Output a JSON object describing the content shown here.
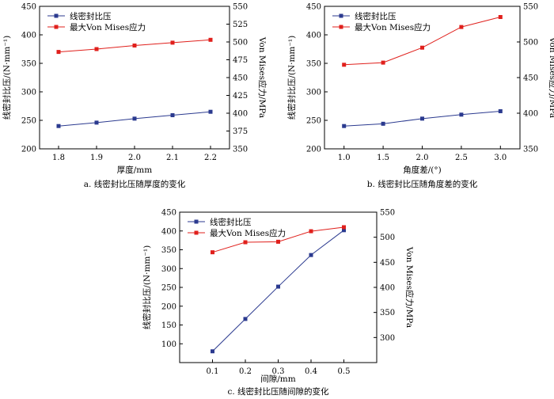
{
  "colors": {
    "blue": "#2b3a8f",
    "red": "#e0201c"
  },
  "chart_data": [
    {
      "type": "line",
      "caption": "a. 线密封比压随厚度的变化",
      "xlabel": "厚度/mm",
      "ylabel_left": "线密封比压/(N·mm⁻¹)",
      "ylabel_right": "Von Mises应力/MPa",
      "x": [
        1.8,
        1.9,
        2.0,
        2.1,
        2.2
      ],
      "x_ticks": [
        "1.8",
        "1.9",
        "2.0",
        "2.1",
        "2.2"
      ],
      "xlim": [
        1.75,
        2.25
      ],
      "ylim_left": [
        200,
        450
      ],
      "y_ticks_left": [
        "200",
        "250",
        "300",
        "350",
        "400",
        "450"
      ],
      "ylim_right": [
        350,
        550
      ],
      "y_ticks_right": [
        "350",
        "375",
        "400",
        "425",
        "450",
        "475",
        "500",
        "525",
        "550"
      ],
      "series": [
        {
          "name": "线密封比压",
          "axis": "left",
          "values": [
            240,
            246,
            253,
            259,
            265
          ]
        },
        {
          "name": "最大Von Mises应力",
          "axis": "right",
          "values": [
            486,
            490,
            495,
            499,
            503
          ]
        }
      ]
    },
    {
      "type": "line",
      "caption": "b. 线密封比压随角度差的变化",
      "xlabel": "角度差/(°)",
      "ylabel_left": "线密封比压/(N·mm⁻¹)",
      "ylabel_right": "Von Mises应力/MPa",
      "x": [
        1.0,
        1.5,
        2.0,
        2.5,
        3.0
      ],
      "x_ticks": [
        "1.0",
        "1.5",
        "2.0",
        "2.5",
        "3.0"
      ],
      "xlim": [
        0.75,
        3.25
      ],
      "ylim_left": [
        200,
        450
      ],
      "y_ticks_left": [
        "200",
        "250",
        "300",
        "350",
        "400",
        "450"
      ],
      "ylim_right": [
        350,
        550
      ],
      "y_ticks_right": [
        "350",
        "400",
        "450",
        "500",
        "550"
      ],
      "series": [
        {
          "name": "线密封比压",
          "axis": "left",
          "values": [
            240,
            244,
            253,
            260,
            266
          ]
        },
        {
          "name": "最大Von Mises应力",
          "axis": "right",
          "values": [
            468,
            471,
            492,
            521,
            535
          ]
        }
      ]
    },
    {
      "type": "line",
      "caption": "c. 线密封比压随间隙的变化",
      "xlabel": "间隙/mm",
      "ylabel_left": "线密封比压/(N·mm⁻¹)",
      "ylabel_right": "Von Mises应力/MPa",
      "x": [
        0.1,
        0.2,
        0.3,
        0.4,
        0.5
      ],
      "x_ticks": [
        "0.1",
        "0.2",
        "0.3",
        "0.4",
        "0.5"
      ],
      "xlim": [
        0.0,
        0.6
      ],
      "ylim_left": [
        50,
        450
      ],
      "y_ticks_left": [
        "100",
        "150",
        "200",
        "250",
        "300",
        "350",
        "400",
        "450"
      ],
      "ylim_right": [
        250,
        550
      ],
      "y_ticks_right": [
        "300",
        "350",
        "400",
        "450",
        "500",
        "550"
      ],
      "series": [
        {
          "name": "线密封比压",
          "axis": "left",
          "values": [
            80,
            166,
            252,
            336,
            402
          ]
        },
        {
          "name": "最大Von Mises应力",
          "axis": "right",
          "values": [
            470,
            490,
            491,
            512,
            520
          ]
        }
      ]
    }
  ]
}
